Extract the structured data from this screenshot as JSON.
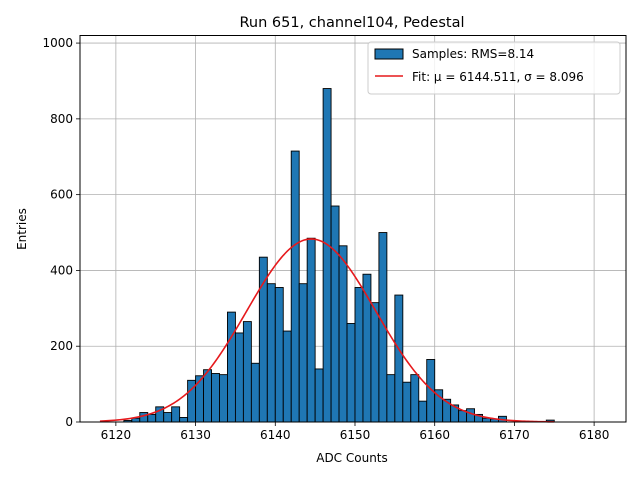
{
  "chart_data": {
    "type": "bar",
    "title": "Run 651, channel104, Pedestal",
    "xlabel": "ADC Counts",
    "ylabel": "Entries",
    "xlim": [
      6115.5,
      6184
    ],
    "ylim": [
      0,
      1020
    ],
    "xticks": [
      6120,
      6130,
      6140,
      6150,
      6160,
      6170,
      6180
    ],
    "yticks": [
      0,
      200,
      400,
      600,
      800,
      1000
    ],
    "grid": true,
    "legend_position": "top-right",
    "bin_width": 1,
    "series": [
      {
        "name": "Samples: RMS=8.14",
        "kind": "histogram",
        "color": "#1f77b4",
        "edge_color": "#000000",
        "bin_left_edges": [
          6121,
          6122,
          6123,
          6124,
          6125,
          6126,
          6127,
          6128,
          6129,
          6130,
          6131,
          6132,
          6133,
          6134,
          6135,
          6136,
          6137,
          6138,
          6139,
          6140,
          6141,
          6142,
          6143,
          6144,
          6145,
          6146,
          6147,
          6148,
          6149,
          6150,
          6151,
          6152,
          6153,
          6154,
          6155,
          6156,
          6157,
          6158,
          6159,
          6160,
          6161,
          6162,
          6163,
          6164,
          6165,
          6166,
          6167,
          6168,
          6174
        ],
        "counts": [
          4,
          10,
          25,
          20,
          40,
          25,
          40,
          12,
          110,
          122,
          138,
          128,
          125,
          290,
          235,
          265,
          155,
          435,
          365,
          355,
          240,
          715,
          365,
          485,
          140,
          880,
          570,
          465,
          260,
          355,
          390,
          315,
          500,
          125,
          335,
          105,
          125,
          55,
          165,
          85,
          60,
          45,
          30,
          35,
          20,
          10,
          8,
          15,
          5
        ]
      },
      {
        "name": "Fit: μ = 6144.511, σ = 8.096",
        "kind": "gaussian",
        "color": "#e6191c",
        "mu": 6144.511,
        "sigma": 8.096,
        "amplitude": 483,
        "x_range": [
          6118,
          6175
        ]
      }
    ]
  }
}
